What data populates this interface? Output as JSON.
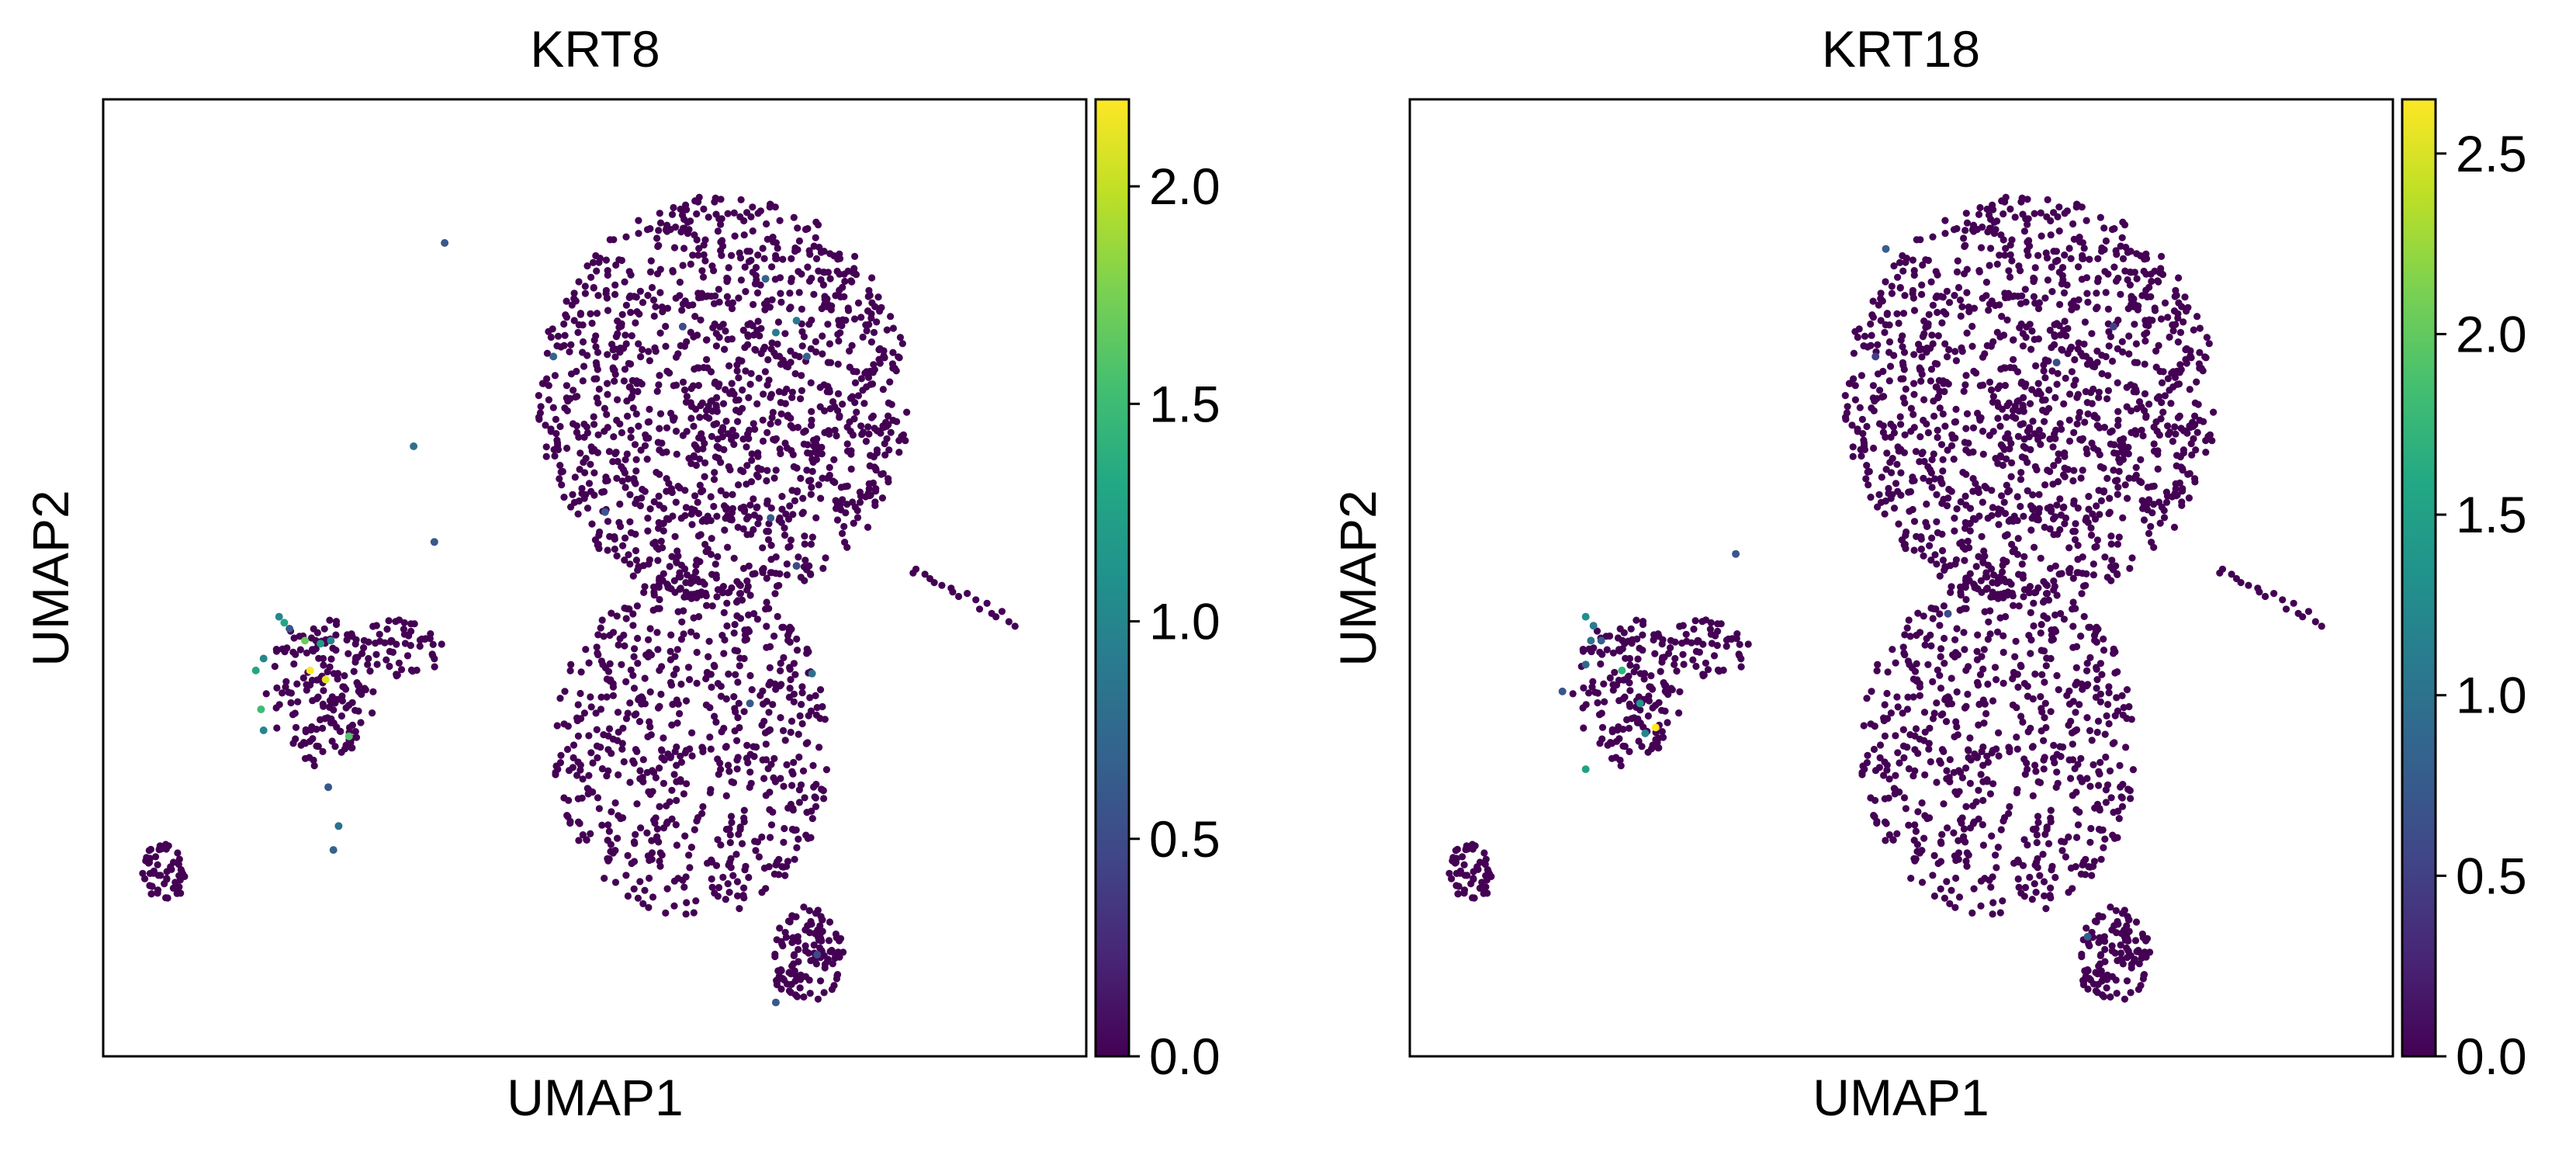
{
  "colormap": "viridis",
  "colors": {
    "low": "#440154",
    "high": "#fde725",
    "frame": "#000000",
    "background": "#ffffff"
  },
  "chart_data": [
    {
      "type": "scatter",
      "title": "KRT8",
      "xlabel": "UMAP1",
      "ylabel": "UMAP2",
      "grid": false,
      "legend": "colorbar-right",
      "colorbar": {
        "range": [
          0,
          2.2
        ],
        "ticks": [
          0.0,
          0.5,
          1.0,
          1.5,
          2.0
        ],
        "tick_labels": [
          "0.0",
          "0.5",
          "1.0",
          "1.5",
          "2.0"
        ]
      },
      "series": [
        {
          "values_description_skipped": true,
          "expressing_cells": [
            [
              -7.6,
              0.35,
              1.0
            ],
            [
              -7.5,
              0.25,
              1.3
            ],
            [
              -7.4,
              0.15,
              0.6
            ],
            [
              -7.1,
              -0.05,
              1.7
            ],
            [
              -7.9,
              -0.35,
              1.0
            ],
            [
              -8.05,
              -0.55,
              1.3
            ],
            [
              -7.95,
              -1.2,
              1.5
            ],
            [
              -7.9,
              -1.55,
              1.0
            ],
            [
              -7.0,
              -0.55,
              2.2
            ],
            [
              -6.7,
              -0.7,
              2.1
            ],
            [
              -6.8,
              -0.1,
              1.2
            ],
            [
              -6.6,
              -0.05,
              1.0
            ],
            [
              -6.25,
              -1.65,
              1.6
            ],
            [
              -6.65,
              -2.5,
              0.6
            ],
            [
              -6.45,
              -3.15,
              0.8
            ],
            [
              -6.55,
              -3.55,
              0.7
            ],
            [
              -5.0,
              3.2,
              0.8
            ],
            [
              -4.4,
              6.6,
              0.6
            ],
            [
              -2.3,
              4.7,
              0.7
            ],
            [
              -1.3,
              2.1,
              0.6
            ],
            [
              0.2,
              5.2,
              0.5
            ],
            [
              1.8,
              6.0,
              0.7
            ],
            [
              2.0,
              5.1,
              0.9
            ],
            [
              2.6,
              4.7,
              0.7
            ],
            [
              2.4,
              5.3,
              0.9
            ],
            [
              1.9,
              2.0,
              0.6
            ],
            [
              2.4,
              1.2,
              0.5
            ],
            [
              1.5,
              -1.1,
              0.6
            ],
            [
              2.7,
              -0.6,
              0.8
            ],
            [
              2.0,
              -6.1,
              0.6
            ],
            [
              2.8,
              -5.3,
              0.5
            ],
            [
              -4.6,
              1.6,
              0.6
            ]
          ]
        }
      ]
    },
    {
      "type": "scatter",
      "title": "KRT18",
      "xlabel": "UMAP1",
      "ylabel": "UMAP2",
      "grid": false,
      "legend": "colorbar-right",
      "colorbar": {
        "range": [
          0,
          2.65
        ],
        "ticks": [
          0.0,
          0.5,
          1.0,
          1.5,
          2.0,
          2.5
        ],
        "tick_labels": [
          "0.0",
          "0.5",
          "1.0",
          "1.5",
          "2.0",
          "2.5"
        ]
      },
      "series": [
        {
          "expressing_cells": [
            [
              -7.6,
              0.35,
              1.3
            ],
            [
              -7.45,
              0.2,
              1.1
            ],
            [
              -7.5,
              -0.05,
              1.0
            ],
            [
              -7.6,
              -0.45,
              0.9
            ],
            [
              -6.9,
              -0.55,
              1.7
            ],
            [
              -8.05,
              -0.9,
              0.7
            ],
            [
              -7.6,
              -2.2,
              1.5
            ],
            [
              -6.55,
              -1.1,
              1.4
            ],
            [
              -6.45,
              -1.6,
              1.2
            ],
            [
              -6.25,
              -1.5,
              2.65
            ],
            [
              -7.3,
              -0.05,
              0.8
            ],
            [
              -4.7,
              1.4,
              0.7
            ],
            [
              -1.8,
              6.5,
              0.8
            ],
            [
              -2.0,
              4.7,
              0.5
            ],
            [
              -0.6,
              0.4,
              0.6
            ],
            [
              1.5,
              4.6,
              0.6
            ],
            [
              2.1,
              -5.0,
              0.8
            ],
            [
              2.6,
              5.2,
              0.5
            ]
          ]
        }
      ]
    }
  ]
}
